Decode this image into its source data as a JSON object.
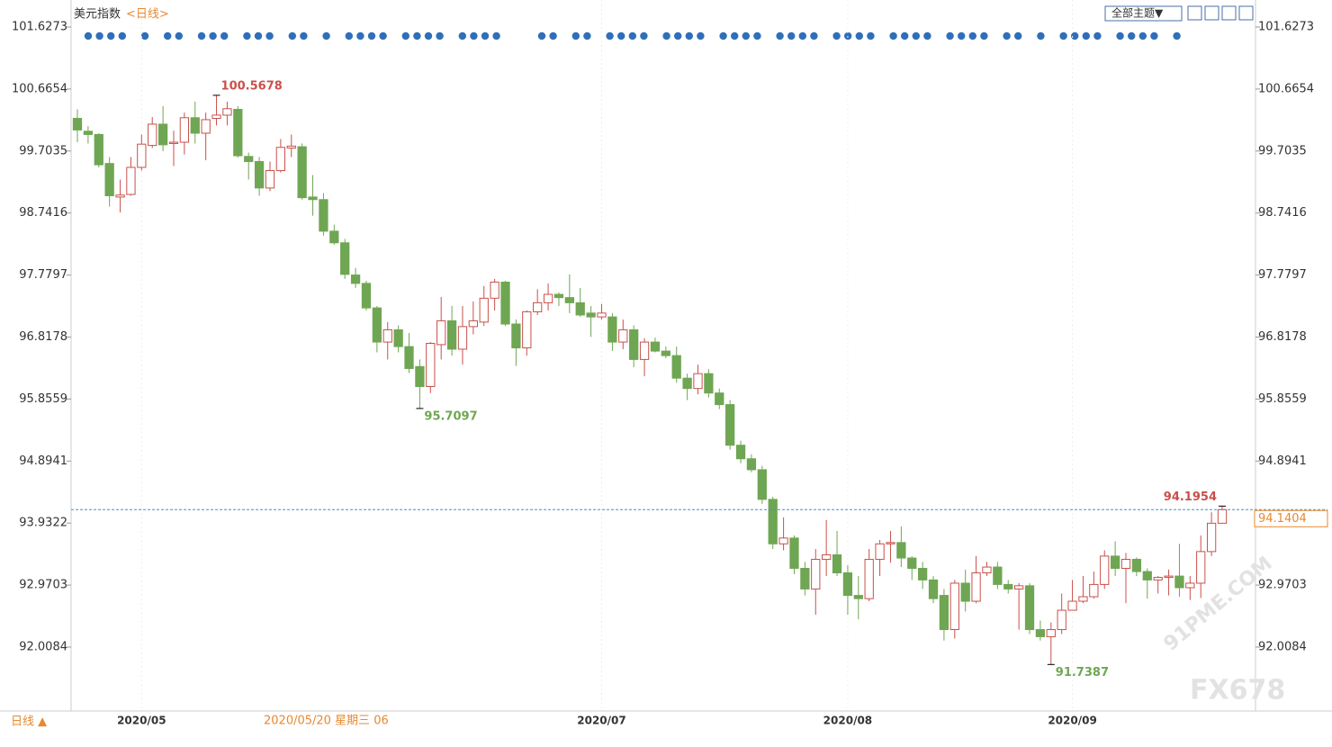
{
  "chart_data": {
    "type": "candlestick",
    "title": "美元指数",
    "subtitle": "<日线>",
    "theme_button": "全部主题▼",
    "period_button": "日线 ▲",
    "crosshair_label": "2020/05/20 星期三 06",
    "watermarks": [
      "91PME.COM",
      "FX678"
    ],
    "categories": [
      null,
      null,
      null,
      null,
      null,
      null,
      "2020/05",
      null,
      null,
      null,
      null,
      null,
      null,
      null,
      null,
      null,
      null,
      null,
      null,
      null,
      null,
      null,
      null,
      null,
      null,
      null,
      null,
      null,
      null,
      null,
      null,
      null,
      null,
      null,
      null,
      null,
      null,
      null,
      null,
      null,
      null,
      null,
      null,
      null,
      null,
      null,
      null,
      null,
      null,
      "2020/07",
      null,
      null,
      null,
      null,
      null,
      null,
      null,
      null,
      null,
      null,
      null,
      null,
      null,
      null,
      null,
      null,
      null,
      null,
      null,
      null,
      null,
      null,
      "2020/08",
      null,
      null,
      null,
      null,
      null,
      null,
      null,
      null,
      null,
      null,
      null,
      null,
      null,
      null,
      null,
      null,
      null,
      null,
      null,
      null,
      "2020/09",
      null,
      null,
      null,
      null,
      null,
      null,
      null,
      null,
      null,
      null,
      null,
      null,
      null,
      null
    ],
    "open": [
      100.21,
      100.01,
      99.96,
      99.51,
      98.99,
      99.03,
      99.45,
      99.79,
      100.12,
      99.82,
      99.84,
      100.22,
      99.98,
      100.21,
      100.26,
      100.35,
      99.62,
      99.54,
      99.13,
      99.4,
      99.75,
      99.77,
      98.99,
      98.95,
      98.46,
      98.28,
      97.78,
      97.65,
      97.27,
      96.74,
      96.93,
      96.67,
      96.36,
      96.05,
      96.7,
      97.07,
      96.63,
      96.98,
      97.05,
      97.42,
      97.67,
      97.02,
      96.65,
      97.21,
      97.35,
      97.48,
      97.43,
      97.35,
      97.19,
      97.13,
      97.13,
      96.74,
      96.93,
      96.47,
      96.74,
      96.6,
      96.53,
      96.18,
      96.02,
      96.25,
      95.95,
      95.77,
      95.14,
      94.93,
      94.76,
      94.3,
      93.61,
      93.7,
      93.23,
      92.91,
      93.37,
      93.44,
      93.16,
      92.81,
      92.76,
      93.37,
      93.61,
      93.63,
      93.39,
      93.23,
      93.05,
      92.81,
      92.28,
      93.0,
      92.72,
      93.16,
      93.25,
      92.98,
      92.91,
      92.96,
      92.28,
      92.17,
      92.28,
      92.58,
      92.72,
      92.79,
      92.98,
      93.42,
      93.23,
      93.37,
      93.18,
      93.05,
      93.09,
      93.11,
      92.93,
      93.0,
      93.49,
      93.93
    ],
    "high": [
      100.35,
      100.09,
      99.98,
      99.61,
      99.26,
      99.61,
      99.96,
      100.23,
      100.4,
      100.02,
      100.3,
      100.47,
      100.3,
      100.5678,
      100.47,
      100.4,
      99.68,
      99.61,
      99.54,
      99.89,
      99.96,
      99.82,
      99.33,
      99.05,
      98.56,
      98.34,
      97.89,
      97.69,
      97.3,
      97.05,
      97.0,
      96.88,
      96.47,
      96.74,
      97.44,
      97.3,
      97.3,
      97.37,
      97.61,
      97.72,
      97.69,
      97.09,
      97.23,
      97.56,
      97.65,
      97.51,
      97.79,
      97.58,
      97.3,
      97.33,
      97.19,
      97.09,
      97.0,
      96.8,
      96.81,
      96.67,
      96.67,
      96.25,
      96.39,
      96.32,
      96.02,
      95.84,
      95.21,
      95.0,
      94.82,
      94.34,
      94.02,
      93.74,
      93.33,
      93.53,
      93.98,
      93.81,
      93.28,
      93.11,
      93.53,
      93.67,
      93.81,
      93.88,
      93.42,
      93.33,
      93.11,
      92.91,
      93.05,
      93.21,
      93.42,
      93.33,
      93.33,
      93.05,
      93.0,
      93.0,
      92.42,
      92.39,
      92.84,
      93.05,
      93.11,
      93.18,
      93.51,
      93.65,
      93.47,
      93.4,
      93.23,
      93.11,
      93.21,
      93.61,
      93.11,
      93.74,
      94.1,
      94.1954
    ],
    "low": [
      99.84,
      99.82,
      99.45,
      98.84,
      98.75,
      99.01,
      99.4,
      99.75,
      99.7,
      99.47,
      99.65,
      99.82,
      99.56,
      100.1,
      100.1,
      99.6,
      99.26,
      99.01,
      99.08,
      99.37,
      99.61,
      98.95,
      98.7,
      98.39,
      98.25,
      97.72,
      97.58,
      97.23,
      96.58,
      96.47,
      96.58,
      96.26,
      95.7097,
      95.95,
      96.47,
      96.53,
      96.39,
      96.86,
      96.99,
      97.23,
      96.99,
      96.37,
      96.53,
      97.16,
      97.23,
      97.3,
      97.19,
      97.13,
      96.82,
      97.09,
      96.6,
      96.63,
      96.35,
      96.21,
      96.58,
      96.49,
      96.11,
      95.84,
      95.93,
      95.88,
      95.7,
      95.07,
      94.86,
      94.72,
      94.23,
      93.53,
      93.51,
      93.14,
      92.81,
      92.51,
      93.11,
      93.11,
      92.51,
      92.44,
      92.72,
      93.11,
      93.32,
      93.25,
      93.05,
      92.91,
      92.69,
      92.11,
      92.14,
      92.56,
      92.69,
      93.11,
      92.91,
      92.84,
      92.28,
      92.21,
      92.11,
      91.7387,
      92.21,
      92.63,
      92.69,
      92.76,
      92.91,
      93.11,
      92.69,
      93.11,
      92.76,
      92.84,
      92.81,
      92.79,
      92.74,
      92.77,
      93.42,
      93.93
    ],
    "close": [
      100.03,
      99.96,
      99.49,
      99.01,
      99.02,
      99.45,
      99.81,
      100.12,
      99.8,
      99.84,
      100.22,
      99.98,
      100.19,
      100.26,
      100.36,
      99.63,
      99.54,
      99.13,
      99.4,
      99.76,
      99.78,
      98.98,
      98.95,
      98.46,
      98.28,
      97.79,
      97.65,
      97.27,
      96.74,
      96.93,
      96.67,
      96.33,
      96.05,
      96.72,
      97.07,
      96.63,
      96.98,
      97.07,
      97.42,
      97.67,
      97.02,
      96.65,
      97.21,
      97.35,
      97.48,
      97.43,
      97.35,
      97.16,
      97.13,
      97.19,
      96.74,
      96.93,
      96.47,
      96.74,
      96.6,
      96.53,
      96.18,
      96.02,
      96.25,
      95.95,
      95.77,
      95.14,
      94.93,
      94.76,
      94.3,
      93.61,
      93.7,
      93.23,
      92.91,
      93.37,
      93.44,
      93.16,
      92.81,
      92.76,
      93.37,
      93.61,
      93.63,
      93.39,
      93.23,
      93.05,
      92.76,
      92.28,
      93.0,
      92.72,
      93.16,
      93.25,
      92.98,
      92.91,
      92.96,
      92.28,
      92.17,
      92.28,
      92.58,
      92.72,
      92.79,
      92.98,
      93.42,
      93.23,
      93.37,
      93.18,
      93.05,
      93.09,
      93.11,
      92.93,
      93.0,
      93.49,
      93.93,
      94.1404
    ],
    "up_color": "#c9504b",
    "down_color": "#6fa653",
    "price_line_color": "#4a8fc8",
    "annotations": [
      {
        "index": 13,
        "field": "high",
        "color": "#c9504b"
      },
      {
        "index": 32,
        "field": "low",
        "color": "#6fa653"
      },
      {
        "index": 91,
        "field": "low",
        "color": "#6fa653"
      },
      {
        "index": 107,
        "field": "high",
        "color": "#c9504b"
      }
    ],
    "ylim": [
      91.0172,
      102.0461
    ],
    "yticks": [
      101.6273,
      100.6654,
      99.7035,
      98.7416,
      97.7797,
      96.8178,
      95.8559,
      94.8941,
      93.9322,
      92.9703,
      92.0084
    ]
  }
}
